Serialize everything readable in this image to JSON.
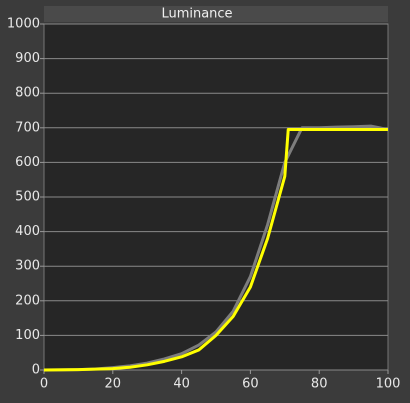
{
  "chart_data": {
    "type": "line",
    "title": "Luminance",
    "xlim": [
      0,
      100
    ],
    "xticks": [
      0,
      20,
      40,
      60,
      80,
      100
    ],
    "ylim": [
      0,
      1000
    ],
    "yticks": [
      0,
      100,
      200,
      300,
      400,
      500,
      600,
      700,
      800,
      900,
      1000
    ],
    "grid": true,
    "series": [
      {
        "color": "#7d7d7d",
        "x": [
          0,
          5,
          10,
          15,
          20,
          25,
          30,
          35,
          40,
          45,
          50,
          55,
          60,
          65,
          70,
          75,
          80,
          85,
          90,
          95,
          100
        ],
        "values": [
          0,
          0.5,
          1,
          3,
          7,
          12,
          20,
          32,
          47,
          72,
          110,
          170,
          270,
          420,
          600,
          700,
          700,
          702,
          703,
          705,
          695
        ]
      },
      {
        "color": "#ffff00",
        "x": [
          0,
          10,
          20,
          25,
          30,
          35,
          40,
          45,
          50,
          55,
          60,
          65,
          70,
          71,
          80,
          90,
          100
        ],
        "values": [
          0,
          1,
          4,
          8,
          15,
          25,
          38,
          58,
          100,
          155,
          240,
          380,
          560,
          695,
          695,
          695,
          695
        ]
      }
    ]
  }
}
